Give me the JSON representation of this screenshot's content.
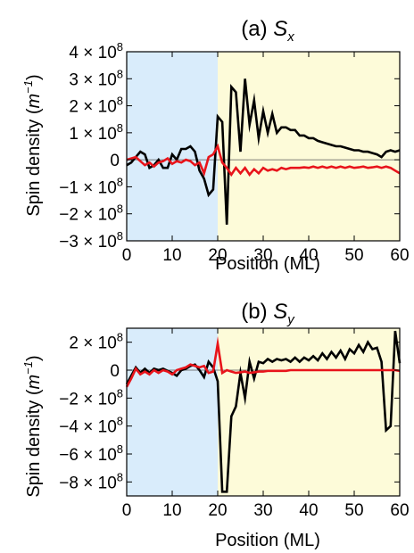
{
  "colors": {
    "left_region": "#d9ecfb",
    "right_region": "#fdfbd9",
    "series_black": "#000000",
    "series_red": "#e8141b"
  },
  "chart_data": [
    {
      "type": "line",
      "title_prefix": "(a) ",
      "title_symbol": "S",
      "title_sub": "x",
      "xlabel": "Position (ML)",
      "ylabel_text": "Spin density (",
      "ylabel_unit": "m",
      "ylabel_exp": "−1",
      "ylabel_close": ")",
      "xlim": [
        0,
        60
      ],
      "ylim": [
        -300000000.0,
        400000000.0
      ],
      "xticks": [
        0,
        10,
        20,
        30,
        40,
        50,
        60
      ],
      "xtick_labels": [
        "0",
        "10",
        "20",
        "30",
        "40",
        "50",
        "60"
      ],
      "yticks": [
        400000000.0,
        300000000.0,
        200000000.0,
        100000000.0,
        0,
        -100000000.0,
        -200000000.0,
        -300000000.0
      ],
      "ytick_labels": [
        {
          "mant": "4",
          "exp": "8"
        },
        {
          "mant": "3",
          "exp": "8"
        },
        {
          "mant": "2",
          "exp": "8"
        },
        {
          "mant": "1",
          "exp": "8"
        },
        {
          "mant": "0",
          "exp": ""
        },
        {
          "mant": "−1",
          "exp": "8"
        },
        {
          "mant": "−2",
          "exp": "8"
        },
        {
          "mant": "−3",
          "exp": "8"
        }
      ],
      "regions": [
        {
          "from": 0,
          "to": 20,
          "color": "#d9ecfb"
        },
        {
          "from": 20,
          "to": 60,
          "color": "#fdfbd9"
        }
      ],
      "series": [
        {
          "color": "#000000",
          "x": [
            0,
            1,
            2,
            3,
            4,
            5,
            6,
            7,
            8,
            9,
            10,
            11,
            12,
            13,
            14,
            15,
            16,
            17,
            18,
            19,
            20,
            21,
            22,
            23,
            24,
            25,
            26,
            27,
            28,
            29,
            30,
            31,
            32,
            33,
            34,
            35,
            36,
            37,
            38,
            39,
            40,
            41,
            42,
            43,
            44,
            45,
            46,
            47,
            48,
            49,
            50,
            51,
            52,
            53,
            54,
            55,
            56,
            57,
            58,
            59,
            60
          ],
          "y": [
            -20000000.0,
            -10000000.0,
            10000000.0,
            30000000.0,
            20000000.0,
            -30000000.0,
            -20000000.0,
            0.0,
            -30000000.0,
            -30000000.0,
            20000000.0,
            0.0,
            40000000.0,
            40000000.0,
            50000000.0,
            30000000.0,
            -40000000.0,
            -70000000.0,
            -130000000.0,
            -110000000.0,
            160000000.0,
            140000000.0,
            -240000000.0,
            270000000.0,
            250000000.0,
            30000000.0,
            300000000.0,
            130000000.0,
            220000000.0,
            80000000.0,
            180000000.0,
            100000000.0,
            170000000.0,
            100000000.0,
            120000000.0,
            120000000.0,
            110000000.0,
            110000000.0,
            90000000.0,
            90000000.0,
            80000000.0,
            80000000.0,
            70000000.0,
            65000000.0,
            60000000.0,
            55000000.0,
            50000000.0,
            50000000.0,
            45000000.0,
            40000000.0,
            35000000.0,
            35000000.0,
            30000000.0,
            30000000.0,
            25000000.0,
            20000000.0,
            10000000.0,
            30000000.0,
            35000000.0,
            30000000.0,
            35000000.0
          ]
        },
        {
          "color": "#e8141b",
          "x": [
            0,
            1,
            2,
            3,
            4,
            5,
            6,
            7,
            8,
            9,
            10,
            11,
            12,
            13,
            14,
            15,
            16,
            17,
            18,
            19,
            20,
            21,
            22,
            23,
            24,
            25,
            26,
            27,
            28,
            29,
            30,
            31,
            32,
            33,
            34,
            35,
            36,
            37,
            38,
            39,
            40,
            41,
            42,
            43,
            44,
            45,
            46,
            47,
            48,
            49,
            50,
            51,
            52,
            53,
            54,
            55,
            56,
            57,
            58,
            59,
            60
          ],
          "y": [
            0.0,
            5000000.0,
            10000000.0,
            -5000000.0,
            -20000000.0,
            -10000000.0,
            -25000000.0,
            -10000000.0,
            -5000000.0,
            5000000.0,
            -15000000.0,
            -5000000.0,
            -10000000.0,
            0.0,
            -5000000.0,
            -20000000.0,
            -10000000.0,
            -50000000.0,
            10000000.0,
            20000000.0,
            50000000.0,
            -10000000.0,
            -30000000.0,
            -55000000.0,
            -30000000.0,
            -50000000.0,
            -30000000.0,
            -55000000.0,
            -35000000.0,
            -50000000.0,
            -30000000.0,
            -40000000.0,
            -35000000.0,
            -40000000.0,
            -30000000.0,
            -35000000.0,
            -30000000.0,
            -30000000.0,
            -30000000.0,
            -28000000.0,
            -30000000.0,
            -25000000.0,
            -30000000.0,
            -25000000.0,
            -30000000.0,
            -25000000.0,
            -30000000.0,
            -25000000.0,
            -30000000.0,
            -25000000.0,
            -30000000.0,
            -28000000.0,
            -25000000.0,
            -30000000.0,
            -28000000.0,
            -25000000.0,
            -30000000.0,
            -25000000.0,
            -30000000.0,
            -40000000.0,
            -50000000.0
          ]
        }
      ]
    },
    {
      "type": "line",
      "title_prefix": "(b) ",
      "title_symbol": "S",
      "title_sub": "y",
      "xlabel": "Position (ML)",
      "ylabel_text": "Spin density (",
      "ylabel_unit": "m",
      "ylabel_exp": "−1",
      "ylabel_close": ")",
      "xlim": [
        0,
        60
      ],
      "ylim": [
        -900000000.0,
        300000000.0
      ],
      "xticks": [
        0,
        10,
        20,
        30,
        40,
        50,
        60
      ],
      "xtick_labels": [
        "0",
        "10",
        "20",
        "30",
        "40",
        "50",
        "60"
      ],
      "yticks": [
        200000000.0,
        0,
        -200000000.0,
        -400000000.0,
        -600000000.0,
        -800000000.0
      ],
      "ytick_labels": [
        {
          "mant": "2",
          "exp": "8"
        },
        {
          "mant": "0",
          "exp": ""
        },
        {
          "mant": "−2",
          "exp": "8"
        },
        {
          "mant": "−4",
          "exp": "8"
        },
        {
          "mant": "−6",
          "exp": "8"
        },
        {
          "mant": "−8",
          "exp": "8"
        }
      ],
      "regions": [
        {
          "from": 0,
          "to": 20,
          "color": "#d9ecfb"
        },
        {
          "from": 20,
          "to": 60,
          "color": "#fdfbd9"
        }
      ],
      "series": [
        {
          "color": "#000000",
          "x": [
            0,
            1,
            2,
            3,
            4,
            5,
            6,
            7,
            8,
            9,
            10,
            11,
            12,
            13,
            14,
            15,
            16,
            17,
            18,
            19,
            20,
            21,
            22,
            23,
            24,
            25,
            26,
            27,
            28,
            29,
            30,
            31,
            32,
            33,
            34,
            35,
            36,
            37,
            38,
            39,
            40,
            41,
            42,
            43,
            44,
            45,
            46,
            47,
            48,
            49,
            50,
            51,
            52,
            53,
            54,
            55,
            56,
            57,
            58,
            59,
            60
          ],
          "y": [
            -100000000.0,
            -40000000.0,
            20000000.0,
            -20000000.0,
            10000000.0,
            -20000000.0,
            10000000.0,
            0.0,
            10000000.0,
            -5000000.0,
            -20000000.0,
            -40000000.0,
            0.0,
            10000000.0,
            30000000.0,
            40000000.0,
            0.0,
            -50000000.0,
            60000000.0,
            20000000.0,
            -80000000.0,
            -870000000.0,
            -870000000.0,
            -330000000.0,
            -260000000.0,
            -20000000.0,
            -200000000.0,
            60000000.0,
            -60000000.0,
            60000000.0,
            50000000.0,
            80000000.0,
            60000000.0,
            80000000.0,
            70000000.0,
            80000000.0,
            60000000.0,
            90000000.0,
            60000000.0,
            90000000.0,
            70000000.0,
            100000000.0,
            70000000.0,
            120000000.0,
            80000000.0,
            130000000.0,
            90000000.0,
            140000000.0,
            80000000.0,
            150000000.0,
            120000000.0,
            180000000.0,
            130000000.0,
            200000000.0,
            150000000.0,
            160000000.0,
            60000000.0,
            -430000000.0,
            -400000000.0,
            280000000.0,
            50000000.0
          ]
        },
        {
          "color": "#e8141b",
          "x": [
            0,
            1,
            2,
            3,
            4,
            5,
            6,
            7,
            8,
            9,
            10,
            11,
            12,
            13,
            14,
            15,
            16,
            17,
            18,
            19,
            20,
            21,
            22,
            23,
            24,
            25,
            26,
            27,
            28,
            29,
            30,
            31,
            32,
            33,
            34,
            35,
            36,
            37,
            38,
            39,
            40,
            41,
            42,
            43,
            44,
            45,
            46,
            47,
            48,
            49,
            50,
            51,
            52,
            53,
            54,
            55,
            56,
            57,
            58,
            59,
            60
          ],
          "y": [
            -120000000.0,
            -60000000.0,
            10000000.0,
            -30000000.0,
            -10000000.0,
            -30000000.0,
            0.0,
            -20000000.0,
            0.0,
            -10000000.0,
            -30000000.0,
            0.0,
            10000000.0,
            20000000.0,
            40000000.0,
            30000000.0,
            20000000.0,
            30000000.0,
            -20000000.0,
            -10000000.0,
            190000000.0,
            -20000000.0,
            0.0,
            -10000000.0,
            -20000000.0,
            -15000000.0,
            -10000000.0,
            -20000000.0,
            -15000000.0,
            -10000000.0,
            -10000000.0,
            -5000000.0,
            -5000000.0,
            -5000000.0,
            -5000000.0,
            -5000000.0,
            0.0,
            0.0,
            0.0,
            0.0,
            0.0,
            0.0,
            0.0,
            0.0,
            0.0,
            0.0,
            0.0,
            0.0,
            0.0,
            0.0,
            0.0,
            0.0,
            0.0,
            0.0,
            0.0,
            0.0,
            0.0,
            0.0,
            0.0,
            0.0,
            -5000000.0
          ]
        }
      ]
    }
  ]
}
